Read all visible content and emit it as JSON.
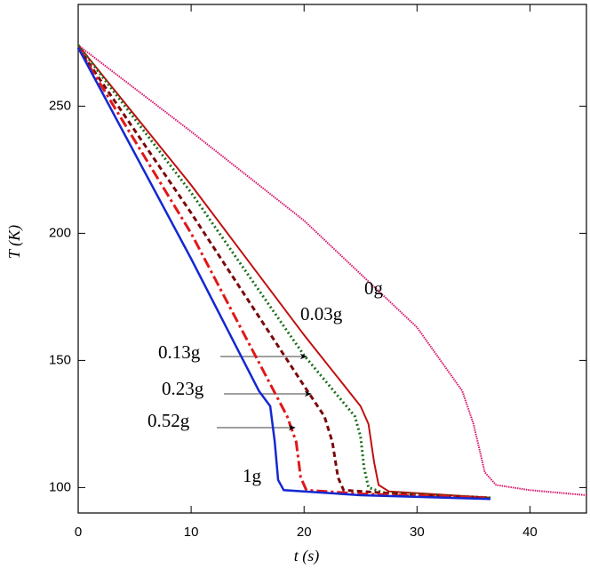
{
  "chart_data": {
    "type": "line",
    "xlabel": "t (s)",
    "ylabel": "T (K)",
    "xlim": [
      0,
      45
    ],
    "xticks": [
      0,
      10,
      20,
      30,
      40
    ],
    "ylim": [
      90,
      290
    ],
    "yticks": [
      100,
      150,
      200,
      250
    ],
    "legend": false,
    "series": [
      {
        "name": "0g",
        "color": "#d6186e",
        "x": [
          0,
          10,
          20,
          30,
          34,
          35,
          36,
          37,
          40,
          45
        ],
        "values": [
          274,
          240,
          205,
          163,
          138,
          125,
          106,
          101,
          99,
          97
        ]
      },
      {
        "name": "0.03g",
        "color": "#c01010",
        "x": [
          0,
          10,
          20,
          25,
          25.7,
          26.2,
          26.6,
          27.5,
          36.5
        ],
        "values": [
          274,
          219,
          160,
          132,
          125,
          110,
          101,
          98.5,
          96
        ]
      },
      {
        "name": "0.13g",
        "color": "#1a6e1a",
        "x": [
          0,
          10,
          20,
          24.5,
          25,
          25.3,
          25.7,
          27,
          36.5
        ],
        "values": [
          274,
          216,
          152,
          128,
          120,
          108,
          100,
          98,
          96
        ]
      },
      {
        "name": "0.23g",
        "color": "#7a0a0a",
        "x": [
          0,
          10,
          20,
          21.8,
          22.5,
          23,
          23.5,
          30,
          36
        ],
        "values": [
          273,
          208,
          140,
          128,
          118,
          104,
          99,
          97,
          96
        ]
      },
      {
        "name": "0.52g",
        "color": "#e01818",
        "x": [
          0,
          10,
          18.5,
          19.3,
          19.7,
          20.2,
          25,
          36
        ],
        "values": [
          273,
          200,
          128,
          118,
          104,
          99,
          97.5,
          96
        ]
      },
      {
        "name": "1g",
        "color": "#1428d0",
        "x": [
          0,
          10,
          16,
          17,
          17.4,
          17.7,
          18.2,
          25,
          36.5
        ],
        "values": [
          273,
          190,
          138,
          132,
          118,
          103,
          99,
          97,
          95.5
        ]
      }
    ]
  }
}
